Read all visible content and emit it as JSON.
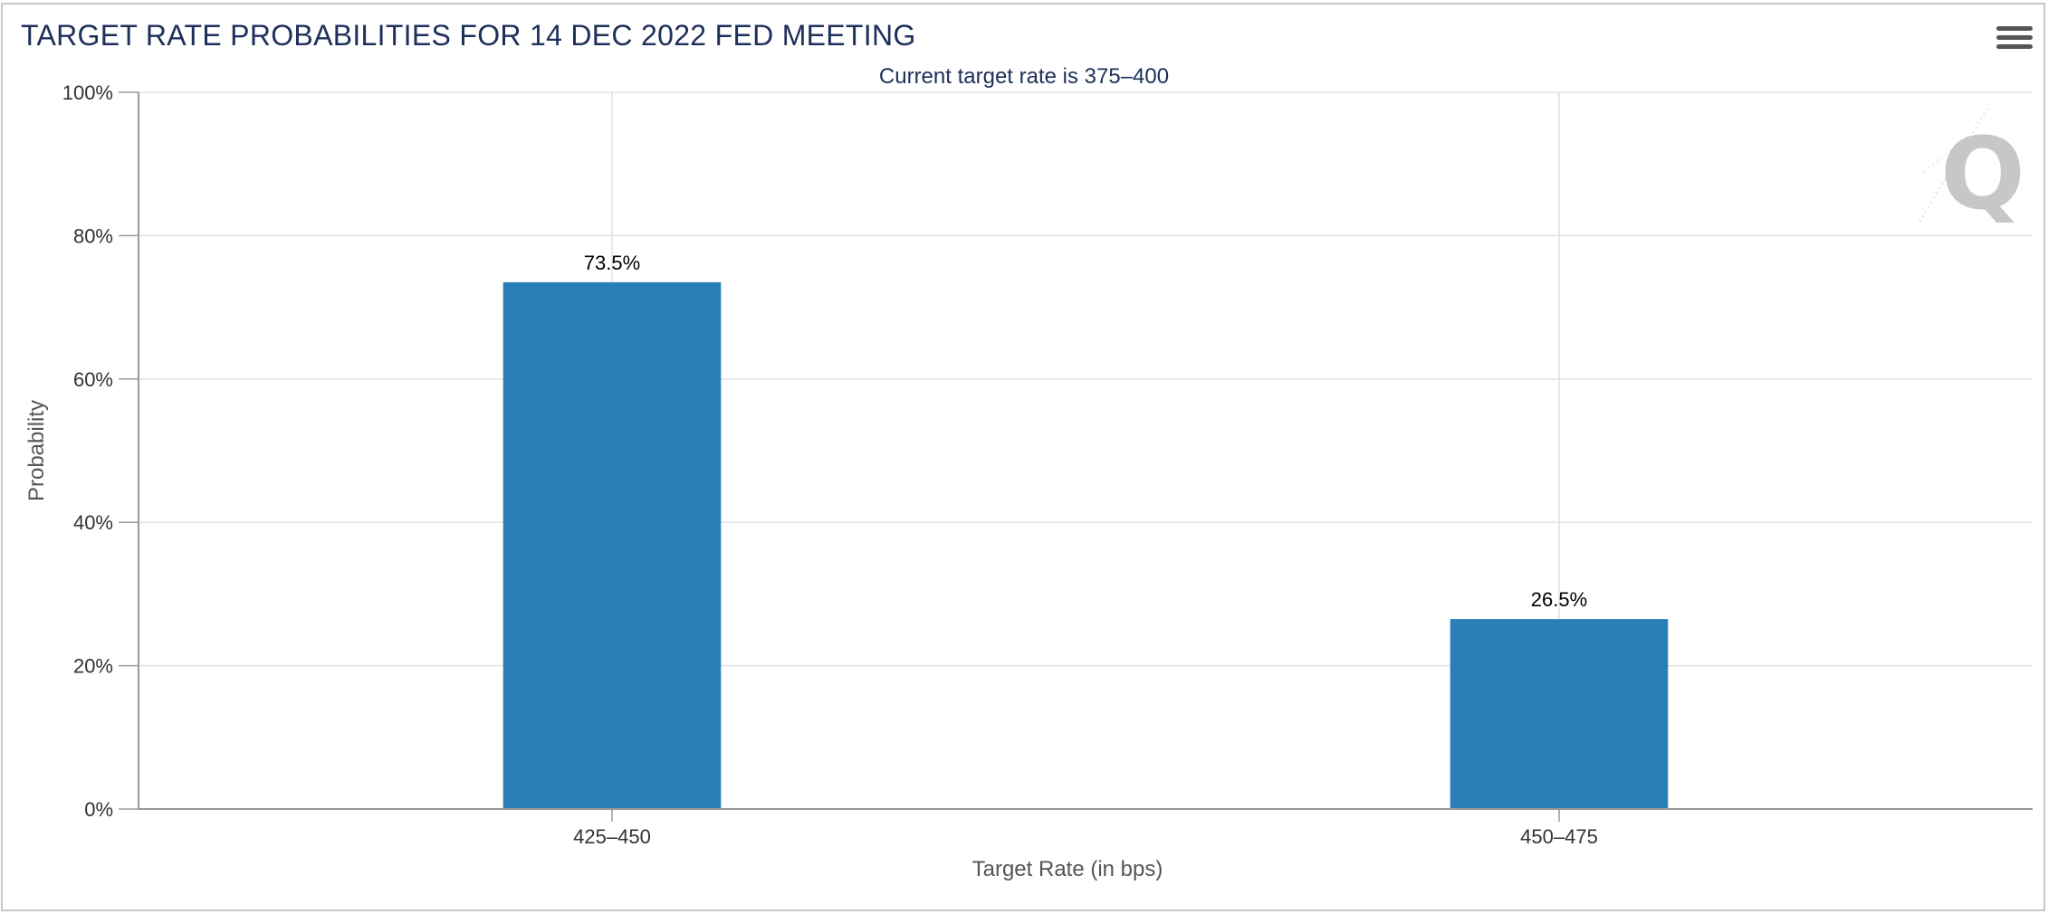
{
  "chart_data": {
    "type": "bar",
    "title": "TARGET RATE PROBABILITIES FOR 14 DEC 2022 FED MEETING",
    "subtitle": "Current target rate is 375–400",
    "xlabel": "Target Rate (in bps)",
    "ylabel": "Probability",
    "categories": [
      "425–450",
      "450–475"
    ],
    "values": [
      73.5,
      26.5
    ],
    "data_labels": [
      "73.5%",
      "26.5%"
    ],
    "ylim": [
      0,
      100
    ],
    "yticks": [
      0,
      20,
      40,
      60,
      80,
      100
    ],
    "ytick_labels": [
      "0%",
      "20%",
      "40%",
      "60%",
      "80%",
      "100%"
    ],
    "grid": true,
    "bar_color": "#2980b9",
    "legend": "none"
  },
  "menu": {
    "icon": "hamburger-menu-icon"
  },
  "watermark": {
    "icon": "q-logo-watermark"
  }
}
